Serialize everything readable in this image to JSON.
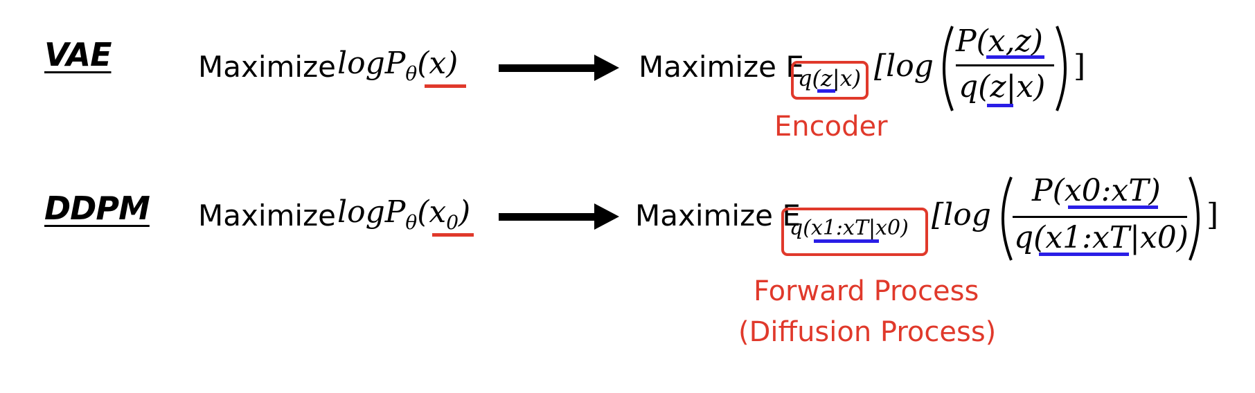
{
  "rows": {
    "vae": {
      "heading": "VAE",
      "maximize_1": "Maximize",
      "objective_1": "logPθ(x)",
      "maximize_2": "Maximize E",
      "expectation_subscript": "q(z|x)",
      "log_text": "[log",
      "numerator": "P(x,z)",
      "denominator": "q(z|x)",
      "close_bracket": "]",
      "annotation": "Encoder"
    },
    "ddpm": {
      "heading": "DDPM",
      "maximize_1": "Maximize",
      "objective_1": "logPθ(x0)",
      "maximize_2": "Maximize E",
      "expectation_subscript": "q(x1:xT|x0)",
      "log_text": "[log",
      "numerator": "P(x0:xT)",
      "denominator": "q(x1:xT|x0)",
      "close_bracket": "]",
      "annotation_line1": "Forward Process",
      "annotation_line2": "(Diffusion Process)"
    }
  },
  "colors": {
    "highlight_red": "#e0392b",
    "highlight_blue": "#2a1ee6",
    "text": "#000000"
  }
}
